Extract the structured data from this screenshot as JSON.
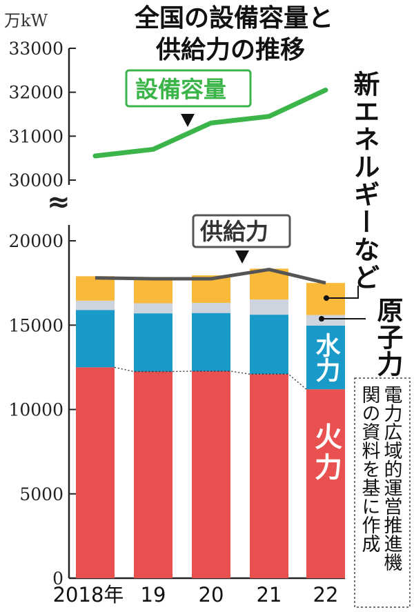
{
  "unit_label": "万kW",
  "title_line1": "全国の設備容量と",
  "title_line2": "供給力の推移",
  "source_note": [
    "電力広域的運営推進機",
    "関の資料を基に作成"
  ],
  "colors": {
    "thermal": "#e8514f",
    "hydro": "#1a9ac9",
    "nuclear": "#cdd4de",
    "renewable": "#f9b93a",
    "capacity_line": "#3bb54a",
    "supply_line": "#555555"
  },
  "chart_data": {
    "type": "bar",
    "categories": [
      "2018年",
      "19",
      "20",
      "21",
      "22"
    ],
    "series": [
      {
        "name": "火力",
        "key": "thermal",
        "values": [
          12500,
          12250,
          12270,
          12100,
          11200
        ]
      },
      {
        "name": "水力",
        "key": "hydro",
        "values": [
          3400,
          3450,
          3450,
          3520,
          3770
        ]
      },
      {
        "name": "原子力",
        "key": "nuclear",
        "values": [
          550,
          600,
          600,
          900,
          630
        ]
      },
      {
        "name": "新エネルギーなど",
        "key": "renewable",
        "values": [
          1450,
          1550,
          1630,
          1830,
          1900
        ]
      }
    ],
    "lines": [
      {
        "name": "設備容量",
        "key": "capacity_line",
        "values": [
          30550,
          30700,
          31300,
          31450,
          32050
        ]
      },
      {
        "name": "供給力",
        "key": "supply_line",
        "values": [
          17800,
          17750,
          17750,
          18300,
          17500
        ]
      }
    ],
    "y_ticks_lower": [
      0,
      5000,
      10000,
      15000,
      20000
    ],
    "y_ticks_upper": [
      30000,
      31000,
      32000,
      33000
    ],
    "axis_break": "≈"
  }
}
